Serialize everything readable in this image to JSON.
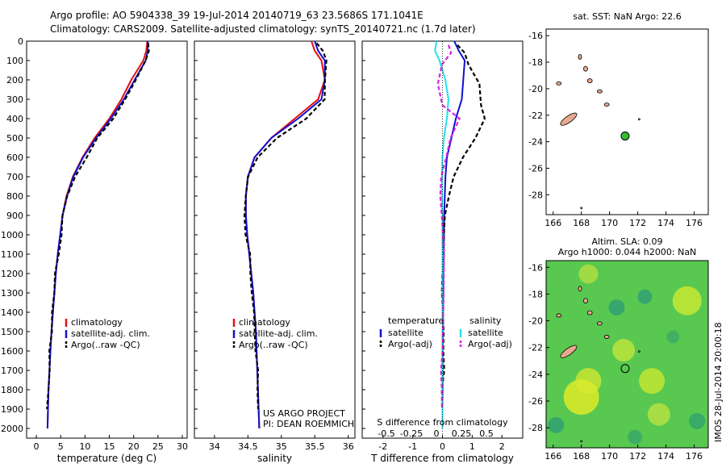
{
  "header": {
    "line1": "Argo profile: AO 5904338_39 19-Jul-2014 20140719_63 23.5686S 171.1041E",
    "line2": "Climatology: CARS2009. Satellite-adjusted climatology: synTS_20140721.nc (1.7d later)"
  },
  "credits": {
    "project": "US ARGO PROJECT",
    "pi": "PI: DEAN ROEMMICH",
    "imos": "IMOS 28-Jul-2014 20:00:18"
  },
  "colors": {
    "climatology": "#e01010",
    "satellite": "#1010d0",
    "argo": "#000000",
    "sat_salinity": "#20e0f0",
    "argo_salinity": "#e020e0",
    "land": "#e8a890",
    "marker": "#30c030"
  },
  "chart_data": [
    {
      "type": "line",
      "xlabel": "temperature (deg C)",
      "xlim": [
        -2,
        31
      ],
      "xticks": [
        "0",
        "5",
        "10",
        "15",
        "20",
        "25",
        "30"
      ],
      "ylim": [
        2050,
        0
      ],
      "yticks": [
        "0",
        "100",
        "200",
        "300",
        "400",
        "500",
        "600",
        "700",
        "800",
        "900",
        "1000",
        "1100",
        "1200",
        "1300",
        "1400",
        "1500",
        "1600",
        "1700",
        "1800",
        "1900",
        "2000"
      ],
      "legend": [
        "climatology",
        "satellite-adj. clim.",
        "Argo(..raw -QC)"
      ],
      "series": [
        {
          "name": "climatology",
          "x": [
            22.8,
            22.6,
            22.0,
            19.5,
            17.5,
            15.0,
            12.0,
            9.5,
            7.5,
            6.2,
            5.4,
            4.9,
            4.4,
            4.0,
            3.7,
            3.4,
            3.1,
            2.9,
            2.7,
            2.5,
            2.4,
            2.3
          ],
          "y": [
            0,
            50,
            100,
            200,
            300,
            400,
            500,
            600,
            700,
            800,
            900,
            1000,
            1100,
            1200,
            1300,
            1400,
            1500,
            1600,
            1700,
            1800,
            1900,
            2000
          ]
        },
        {
          "name": "satellite-adj. clim.",
          "x": [
            22.9,
            22.9,
            22.5,
            20.2,
            18.0,
            15.3,
            12.3,
            9.6,
            7.6,
            6.3,
            5.4,
            4.9,
            4.4,
            4.0,
            3.7,
            3.4,
            3.1,
            2.9,
            2.7,
            2.5,
            2.4,
            2.3
          ],
          "y": [
            0,
            50,
            100,
            200,
            300,
            400,
            500,
            600,
            700,
            800,
            900,
            1000,
            1100,
            1200,
            1300,
            1400,
            1500,
            1600,
            1700,
            1800,
            1900,
            2000
          ]
        },
        {
          "name": "Argo(..raw -QC)",
          "x": [
            23.0,
            23.1,
            22.7,
            20.6,
            18.3,
            15.8,
            12.8,
            10.1,
            7.9,
            6.4,
            5.5,
            5.0,
            4.5,
            4.1,
            3.7,
            3.4,
            3.1,
            2.9,
            2.7,
            2.5,
            2.4
          ],
          "y": [
            10,
            50,
            100,
            200,
            300,
            400,
            500,
            600,
            700,
            800,
            900,
            1000,
            1100,
            1200,
            1300,
            1400,
            1500,
            1600,
            1700,
            1800,
            1900
          ]
        }
      ]
    },
    {
      "type": "line",
      "xlabel": "salinity",
      "xlim": [
        33.7,
        36.1
      ],
      "xticks": [
        "34",
        "34.5",
        "35",
        "35.5",
        "36"
      ],
      "ylim": [
        2050,
        0
      ],
      "legend": [
        "climatology",
        "satellite-adj. clim.",
        "Argo(..raw -QC)"
      ],
      "series": [
        {
          "name": "climatology",
          "x": [
            35.45,
            35.5,
            35.6,
            35.65,
            35.55,
            35.2,
            34.85,
            34.6,
            34.5,
            34.47,
            34.47,
            34.49,
            34.52,
            34.55,
            34.58,
            34.6,
            34.62,
            34.63,
            34.64,
            34.65,
            34.66,
            34.67
          ],
          "y": [
            0,
            50,
            100,
            200,
            300,
            400,
            500,
            600,
            700,
            800,
            900,
            1000,
            1100,
            1200,
            1300,
            1400,
            1500,
            1600,
            1700,
            1800,
            1900,
            2000
          ]
        },
        {
          "name": "satellite-adj. clim.",
          "x": [
            35.5,
            35.55,
            35.65,
            35.65,
            35.6,
            35.25,
            34.85,
            34.6,
            34.5,
            34.47,
            34.47,
            34.49,
            34.52,
            34.55,
            34.58,
            34.6,
            34.62,
            34.63,
            34.64,
            34.65,
            34.66,
            34.67
          ],
          "y": [
            0,
            50,
            100,
            200,
            300,
            400,
            500,
            600,
            700,
            800,
            900,
            1000,
            1100,
            1200,
            1300,
            1400,
            1500,
            1600,
            1700,
            1800,
            1900,
            2000
          ]
        },
        {
          "name": "Argo(..raw -QC)",
          "x": [
            35.55,
            35.6,
            35.65,
            35.67,
            35.65,
            35.35,
            34.95,
            34.65,
            34.5,
            34.46,
            34.46,
            34.48,
            34.51,
            34.54,
            34.57,
            34.59,
            34.61,
            34.63,
            34.64,
            34.65,
            34.66
          ],
          "y": [
            10,
            50,
            100,
            200,
            300,
            400,
            500,
            600,
            700,
            800,
            900,
            1000,
            1100,
            1200,
            1300,
            1400,
            1500,
            1600,
            1700,
            1800,
            1900
          ]
        }
      ]
    },
    {
      "type": "line",
      "xlabel": "T difference from climatology",
      "top_label": "S difference from climatology",
      "xlim": [
        -2.7,
        2.7
      ],
      "xticks": [
        "-2",
        "-1",
        "0",
        "1",
        "2"
      ],
      "top_xticks": [
        "-0.5",
        "-0.25",
        "0",
        "0.25",
        "0.5"
      ],
      "ylim": [
        2050,
        0
      ],
      "legend_titles": [
        "temperature",
        "salinity"
      ],
      "legend": [
        "satellite",
        "Argo(-adj)",
        "satellite",
        "Argo(-adj)"
      ],
      "series": [
        {
          "name": "satellite",
          "x": [
            0.4,
            0.55,
            0.75,
            0.7,
            0.65,
            0.45,
            0.3,
            0.15,
            0.1,
            0.08,
            0.06,
            0.05,
            0.04,
            0.03,
            0.03,
            0.02,
            0.02,
            0.01,
            0.01,
            0.01,
            0.0,
            0.0
          ],
          "y": [
            0,
            50,
            100,
            200,
            300,
            400,
            500,
            600,
            700,
            800,
            900,
            1000,
            1100,
            1200,
            1300,
            1400,
            1500,
            1600,
            1700,
            1800,
            1900,
            2000
          ]
        },
        {
          "name": "Argo(-adj)",
          "x": [
            0.55,
            0.7,
            0.9,
            1.2,
            1.3,
            1.45,
            1.1,
            0.7,
            0.35,
            0.2,
            0.12,
            0.08,
            0.05,
            0.04,
            0.03,
            0.02,
            0.02,
            0.01,
            0.01,
            0.0,
            0.0
          ],
          "y": [
            20,
            60,
            120,
            220,
            330,
            400,
            500,
            600,
            700,
            800,
            900,
            1000,
            1100,
            1200,
            1300,
            1400,
            1500,
            1600,
            1700,
            1800,
            1900
          ]
        },
        {
          "name": "satellite",
          "x": [
            -0.2,
            -0.25,
            -0.1,
            0.1,
            0.2,
            0.15,
            0.05,
            0.0,
            -0.02,
            -0.02,
            0.0,
            0.0,
            0.0,
            0.0,
            0.0,
            0.0,
            0.0,
            0.0,
            0.0,
            0.0,
            0.0,
            0.0
          ],
          "y": [
            0,
            50,
            100,
            200,
            300,
            400,
            500,
            600,
            700,
            800,
            900,
            1000,
            1100,
            1200,
            1300,
            1400,
            1500,
            1600,
            1700,
            1800,
            1900,
            2000
          ]
        },
        {
          "name": "Argo(-adj)",
          "x": [
            0.2,
            0.3,
            -0.05,
            -0.15,
            0.0,
            0.6,
            0.3,
            0.1,
            0.0,
            -0.05,
            -0.05,
            -0.02,
            0.0,
            0.0,
            0.0,
            0.0,
            0.0,
            0.0,
            0.0,
            0.0,
            0.0
          ],
          "y": [
            20,
            60,
            120,
            220,
            330,
            400,
            500,
            600,
            700,
            800,
            900,
            1000,
            1100,
            1200,
            1300,
            1400,
            1500,
            1600,
            1700,
            1800,
            1900
          ]
        }
      ]
    },
    {
      "type": "map",
      "title": "sat. SST: NaN Argo: 22.6",
      "xlim": [
        165.5,
        177
      ],
      "ylim": [
        -29.5,
        -15.5
      ],
      "xticks": [
        "166",
        "168",
        "170",
        "172",
        "174",
        "176"
      ],
      "yticks": [
        "-16",
        "-18",
        "-20",
        "-22",
        "-24",
        "-26",
        "-28"
      ],
      "argo_position": {
        "lon": 171.1041,
        "lat": -23.5686
      }
    },
    {
      "type": "heatmap",
      "title_line1": "Altim. SLA: 0.09",
      "title_line2": "Argo h1000: 0.044 h2000: NaN",
      "xlim": [
        165.5,
        177
      ],
      "ylim": [
        -29.5,
        -15.5
      ],
      "xticks": [
        "166",
        "168",
        "170",
        "172",
        "174",
        "176"
      ],
      "yticks": [
        "-16",
        "-18",
        "-20",
        "-22",
        "-24",
        "-26",
        "-28"
      ],
      "argo_position": {
        "lon": 171.1041,
        "lat": -23.5686
      }
    }
  ]
}
